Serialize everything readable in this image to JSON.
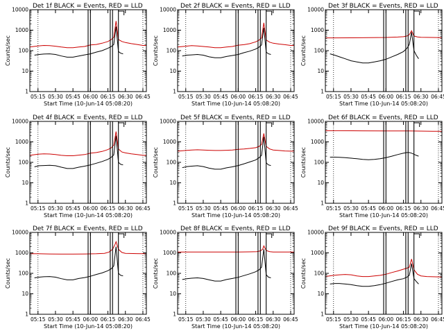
{
  "figure": {
    "x_tick_labels": [
      "05:15",
      "05:30",
      "05:45",
      "06:00",
      "06:15",
      "06:30",
      "06:45"
    ],
    "y_tick_labels": [
      "1",
      "10",
      "100",
      "1000",
      "10000"
    ],
    "xlabel": "Start Time (10-Jun-14 05:08:20)",
    "ylabel": "Counts/sec"
  },
  "chart_data": [
    {
      "type": "line",
      "title": "Det 1f BLACK = Events, RED = LLD",
      "xlabel": "Start Time (10-Jun-14 05:08:20)",
      "ylabel": "Counts/sec",
      "yscale": "log",
      "ylim": [
        1,
        10000
      ],
      "xlim": [
        "05:08",
        "06:48"
      ],
      "series": [
        {
          "name": "Events",
          "color": "#000000",
          "x": [
            "05:12",
            "05:16",
            "05:20",
            "05:25",
            "05:30",
            "05:35",
            "05:40",
            "05:45",
            "05:50",
            "05:55",
            "06:00",
            "06:05",
            "06:10",
            "06:15",
            "06:18",
            "06:20",
            "06:22",
            "06:24",
            "06:26",
            "06:28"
          ],
          "values": [
            60,
            65,
            68,
            70,
            65,
            55,
            48,
            48,
            55,
            62,
            70,
            85,
            100,
            130,
            160,
            200,
            1500,
            90,
            75,
            70
          ]
        },
        {
          "name": "LLD",
          "color": "#cc0000",
          "x": [
            "05:08",
            "05:15",
            "05:20",
            "05:25",
            "05:30",
            "05:35",
            "05:40",
            "05:45",
            "05:50",
            "05:55",
            "06:00",
            "06:05",
            "06:10",
            "06:15",
            "06:18",
            "06:20",
            "06:22",
            "06:24",
            "06:27",
            "06:30",
            "06:35",
            "06:40",
            "06:45",
            "06:48"
          ],
          "values": [
            150,
            170,
            180,
            175,
            165,
            150,
            140,
            140,
            150,
            160,
            190,
            200,
            230,
            280,
            350,
            450,
            2800,
            350,
            280,
            250,
            220,
            200,
            180,
            180
          ]
        }
      ]
    },
    {
      "type": "line",
      "title": "Det 2f BLACK = Events, RED = LLD",
      "xlabel": "Start Time (10-Jun-14 05:08:20)",
      "ylabel": "Counts/sec",
      "yscale": "log",
      "ylim": [
        1,
        10000
      ],
      "xlim": [
        "05:08",
        "06:48"
      ],
      "series": [
        {
          "name": "Events",
          "color": "#000000",
          "x": [
            "05:12",
            "05:16",
            "05:20",
            "05:25",
            "05:30",
            "05:35",
            "05:40",
            "05:45",
            "05:50",
            "05:55",
            "06:00",
            "06:05",
            "06:10",
            "06:15",
            "06:18",
            "06:20",
            "06:22",
            "06:24",
            "06:26",
            "06:28"
          ],
          "values": [
            55,
            60,
            62,
            65,
            60,
            50,
            45,
            45,
            52,
            58,
            65,
            80,
            95,
            120,
            150,
            190,
            1300,
            85,
            70,
            65
          ]
        },
        {
          "name": "LLD",
          "color": "#cc0000",
          "x": [
            "05:08",
            "05:15",
            "05:20",
            "05:25",
            "05:30",
            "05:35",
            "05:40",
            "05:45",
            "05:50",
            "05:55",
            "06:00",
            "06:05",
            "06:10",
            "06:15",
            "06:18",
            "06:20",
            "06:22",
            "06:24",
            "06:27",
            "06:30",
            "06:35",
            "06:40",
            "06:45",
            "06:48"
          ],
          "values": [
            150,
            165,
            175,
            170,
            160,
            150,
            140,
            140,
            150,
            160,
            185,
            195,
            220,
            270,
            330,
            420,
            2300,
            330,
            260,
            230,
            210,
            195,
            180,
            180
          ]
        }
      ]
    },
    {
      "type": "line",
      "title": "Det 3f BLACK = Events, RED = LLD",
      "xlabel": "Start Time (10-Jun-14 05:08:20)",
      "ylabel": "Counts/sec",
      "yscale": "log",
      "ylim": [
        1,
        10000
      ],
      "xlim": [
        "05:08",
        "06:48"
      ],
      "series": [
        {
          "name": "Events",
          "color": "#000000",
          "x": [
            "05:12",
            "05:16",
            "05:20",
            "05:25",
            "05:30",
            "05:35",
            "05:40",
            "05:45",
            "05:50",
            "05:55",
            "06:00",
            "06:05",
            "06:10",
            "06:15",
            "06:18",
            "06:20",
            "06:22",
            "06:24",
            "06:26",
            "06:28"
          ],
          "values": [
            70,
            60,
            50,
            40,
            32,
            28,
            25,
            25,
            28,
            32,
            38,
            50,
            65,
            90,
            130,
            200,
            800,
            100,
            60,
            40
          ]
        },
        {
          "name": "LLD",
          "color": "#cc0000",
          "x": [
            "05:08",
            "05:15",
            "05:30",
            "05:45",
            "06:00",
            "06:10",
            "06:15",
            "06:18",
            "06:20",
            "06:22",
            "06:24",
            "06:27",
            "06:30",
            "06:40",
            "06:48"
          ],
          "values": [
            420,
            420,
            425,
            430,
            440,
            460,
            480,
            520,
            600,
            950,
            520,
            470,
            450,
            440,
            430
          ]
        }
      ]
    },
    {
      "type": "line",
      "title": "Det 4f BLACK = Events, RED = LLD",
      "xlabel": "Start Time (10-Jun-14 05:08:20)",
      "ylabel": "Counts/sec",
      "yscale": "log",
      "ylim": [
        1,
        10000
      ],
      "xlim": [
        "05:08",
        "06:48"
      ],
      "series": [
        {
          "name": "Events",
          "color": "#000000",
          "x": [
            "05:12",
            "05:16",
            "05:20",
            "05:25",
            "05:30",
            "05:35",
            "05:40",
            "05:45",
            "05:50",
            "05:55",
            "06:00",
            "06:05",
            "06:10",
            "06:15",
            "06:18",
            "06:20",
            "06:22",
            "06:24",
            "06:26",
            "06:28"
          ],
          "values": [
            60,
            68,
            70,
            72,
            68,
            58,
            50,
            50,
            58,
            65,
            75,
            90,
            110,
            140,
            180,
            230,
            2000,
            100,
            80,
            75
          ]
        },
        {
          "name": "LLD",
          "color": "#cc0000",
          "x": [
            "05:08",
            "05:15",
            "05:20",
            "05:25",
            "05:30",
            "05:35",
            "05:40",
            "05:45",
            "05:50",
            "05:55",
            "06:00",
            "06:05",
            "06:10",
            "06:15",
            "06:18",
            "06:20",
            "06:22",
            "06:24",
            "06:27",
            "06:30",
            "06:35",
            "06:40",
            "06:45",
            "06:48"
          ],
          "values": [
            220,
            250,
            260,
            255,
            240,
            220,
            210,
            210,
            225,
            240,
            280,
            300,
            340,
            420,
            520,
            700,
            3200,
            450,
            320,
            290,
            260,
            240,
            220,
            220
          ]
        }
      ]
    },
    {
      "type": "line",
      "title": "Det 5f BLACK = Events, RED = LLD",
      "xlabel": "Start Time (10-Jun-14 05:08:20)",
      "ylabel": "Counts/sec",
      "yscale": "log",
      "ylim": [
        1,
        10000
      ],
      "xlim": [
        "05:08",
        "06:48"
      ],
      "series": [
        {
          "name": "Events",
          "color": "#000000",
          "x": [
            "05:12",
            "05:16",
            "05:20",
            "05:25",
            "05:30",
            "05:35",
            "05:40",
            "05:45",
            "05:50",
            "05:55",
            "06:00",
            "06:05",
            "06:10",
            "06:15",
            "06:18",
            "06:20",
            "06:22",
            "06:24",
            "06:26",
            "06:28"
          ],
          "values": [
            55,
            62,
            65,
            68,
            62,
            52,
            46,
            46,
            54,
            60,
            70,
            85,
            105,
            130,
            170,
            220,
            1800,
            95,
            75,
            70
          ]
        },
        {
          "name": "LLD",
          "color": "#cc0000",
          "x": [
            "05:08",
            "05:15",
            "05:20",
            "05:25",
            "05:30",
            "05:35",
            "05:40",
            "05:45",
            "05:50",
            "05:55",
            "06:00",
            "06:05",
            "06:10",
            "06:15",
            "06:18",
            "06:20",
            "06:22",
            "06:24",
            "06:27",
            "06:30",
            "06:35",
            "06:40",
            "06:45",
            "06:48"
          ],
          "values": [
            350,
            380,
            400,
            410,
            400,
            390,
            380,
            380,
            390,
            400,
            430,
            450,
            480,
            520,
            600,
            750,
            2600,
            600,
            450,
            400,
            380,
            360,
            350,
            350
          ]
        }
      ]
    },
    {
      "type": "line",
      "title": "Det 6f BLACK = Events, RED = LLD",
      "xlabel": "Start Time (10-Jun-14 05:08:20)",
      "ylabel": "Counts/sec",
      "yscale": "log",
      "ylim": [
        1,
        10000
      ],
      "xlim": [
        "05:08",
        "06:48"
      ],
      "series": [
        {
          "name": "Events",
          "color": "#000000",
          "x": [
            "05:12",
            "05:16",
            "05:20",
            "05:25",
            "05:30",
            "05:35",
            "05:40",
            "05:45",
            "05:50",
            "05:55",
            "06:00",
            "06:05",
            "06:10",
            "06:15",
            "06:18",
            "06:20",
            "06:22",
            "06:24",
            "06:26",
            "06:28"
          ],
          "values": [
            180,
            180,
            175,
            170,
            160,
            150,
            140,
            135,
            140,
            150,
            170,
            200,
            240,
            280,
            300,
            300,
            280,
            250,
            220,
            200
          ]
        },
        {
          "name": "LLD",
          "color": "#cc0000",
          "x": [
            "05:08",
            "05:20",
            "05:40",
            "06:00",
            "06:20",
            "06:30",
            "06:40",
            "06:48"
          ],
          "values": [
            3500,
            3500,
            3450,
            3400,
            3400,
            3350,
            3300,
            3300
          ]
        }
      ]
    },
    {
      "type": "line",
      "title": "Det 7f BLACK = Events, RED = LLD",
      "xlabel": "Start Time (10-Jun-14 05:08:20)",
      "ylabel": "Counts/sec",
      "yscale": "log",
      "ylim": [
        1,
        10000
      ],
      "xlim": [
        "05:08",
        "06:48"
      ],
      "series": [
        {
          "name": "Events",
          "color": "#000000",
          "x": [
            "05:12",
            "05:16",
            "05:20",
            "05:25",
            "05:30",
            "05:35",
            "05:40",
            "05:45",
            "05:50",
            "05:55",
            "06:00",
            "06:05",
            "06:10",
            "06:15",
            "06:18",
            "06:20",
            "06:22",
            "06:24",
            "06:26",
            "06:28"
          ],
          "values": [
            60,
            65,
            68,
            70,
            65,
            55,
            48,
            48,
            56,
            62,
            72,
            88,
            105,
            135,
            170,
            230,
            2000,
            100,
            80,
            75
          ]
        },
        {
          "name": "LLD",
          "color": "#cc0000",
          "x": [
            "05:08",
            "05:15",
            "05:25",
            "05:35",
            "05:45",
            "05:55",
            "06:05",
            "06:12",
            "06:16",
            "06:19",
            "06:21",
            "06:22",
            "06:24",
            "06:27",
            "06:30",
            "06:40",
            "06:48"
          ],
          "values": [
            900,
            900,
            880,
            870,
            870,
            880,
            900,
            950,
            1100,
            1500,
            2500,
            3500,
            1500,
            1050,
            950,
            920,
            900
          ]
        }
      ]
    },
    {
      "type": "line",
      "title": "Det 8f BLACK = Events, RED = LLD",
      "xlabel": "Start Time (10-Jun-14 05:08:20)",
      "ylabel": "Counts/sec",
      "yscale": "log",
      "ylim": [
        1,
        10000
      ],
      "xlim": [
        "05:08",
        "06:48"
      ],
      "series": [
        {
          "name": "Events",
          "color": "#000000",
          "x": [
            "05:12",
            "05:16",
            "05:20",
            "05:25",
            "05:30",
            "05:35",
            "05:40",
            "05:45",
            "05:50",
            "05:55",
            "06:00",
            "06:05",
            "06:10",
            "06:15",
            "06:18",
            "06:20",
            "06:22",
            "06:24",
            "06:26",
            "06:28"
          ],
          "values": [
            50,
            55,
            58,
            60,
            56,
            48,
            42,
            42,
            50,
            56,
            64,
            78,
            95,
            120,
            150,
            200,
            1500,
            85,
            65,
            60
          ]
        },
        {
          "name": "LLD",
          "color": "#cc0000",
          "x": [
            "05:08",
            "05:20",
            "05:40",
            "06:00",
            "06:10",
            "06:16",
            "06:19",
            "06:21",
            "06:22",
            "06:24",
            "06:27",
            "06:30",
            "06:40",
            "06:48"
          ],
          "values": [
            1100,
            1100,
            1100,
            1100,
            1120,
            1150,
            1250,
            1500,
            2200,
            1300,
            1150,
            1100,
            1100,
            1100
          ]
        }
      ]
    },
    {
      "type": "line",
      "title": "Det 9f BLACK = Events, RED = LLD",
      "xlabel": "Start Time (10-Jun-14 05:08:20)",
      "ylabel": "Counts/sec",
      "yscale": "log",
      "ylim": [
        1,
        10000
      ],
      "xlim": [
        "05:08",
        "06:48"
      ],
      "series": [
        {
          "name": "Events",
          "color": "#000000",
          "x": [
            "05:12",
            "05:16",
            "05:20",
            "05:25",
            "05:30",
            "05:35",
            "05:40",
            "05:45",
            "05:50",
            "05:55",
            "06:00",
            "06:05",
            "06:10",
            "06:15",
            "06:18",
            "06:20",
            "06:22",
            "06:24",
            "06:26",
            "06:28"
          ],
          "values": [
            30,
            32,
            32,
            30,
            28,
            25,
            23,
            23,
            25,
            28,
            33,
            40,
            48,
            55,
            65,
            80,
            300,
            55,
            40,
            30
          ]
        },
        {
          "name": "LLD",
          "color": "#cc0000",
          "x": [
            "05:08",
            "05:15",
            "05:20",
            "05:25",
            "05:30",
            "05:35",
            "05:40",
            "05:45",
            "05:50",
            "05:55",
            "06:00",
            "06:05",
            "06:10",
            "06:15",
            "06:18",
            "06:20",
            "06:22",
            "06:24",
            "06:27",
            "06:30",
            "06:35",
            "06:40",
            "06:45",
            "06:48"
          ],
          "values": [
            70,
            80,
            85,
            88,
            85,
            75,
            70,
            70,
            75,
            80,
            90,
            110,
            130,
            160,
            180,
            200,
            500,
            150,
            90,
            75,
            70,
            68,
            67,
            67
          ]
        }
      ]
    }
  ]
}
